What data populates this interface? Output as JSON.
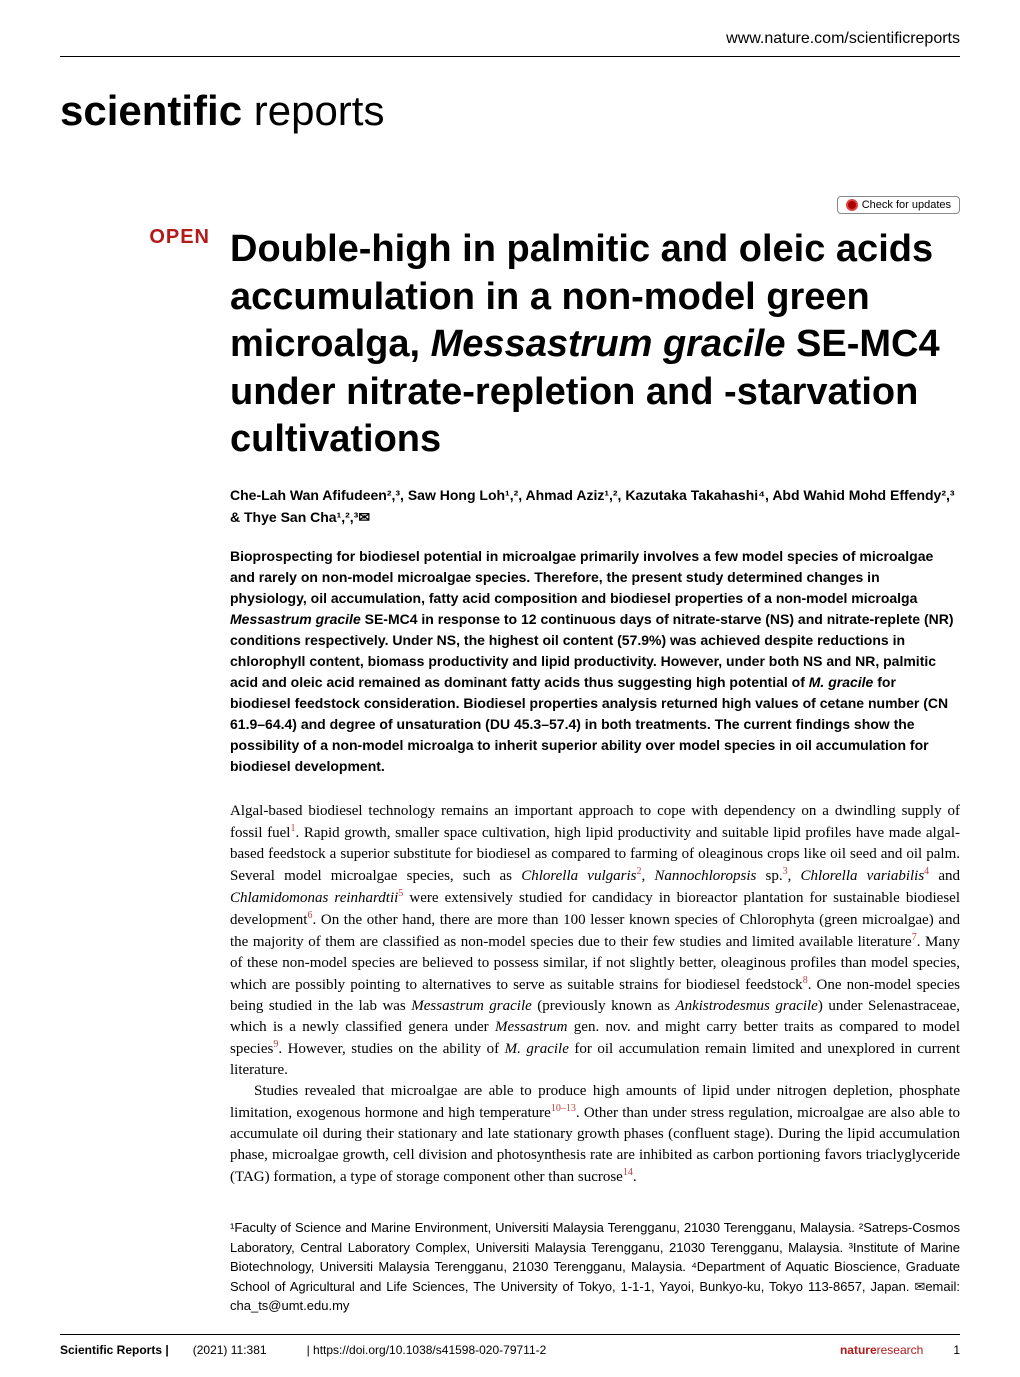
{
  "header": {
    "url": "www.nature.com/scientificreports",
    "journal_bold": "scientific",
    "journal_light": " reports",
    "check_updates": "Check for updates"
  },
  "open_label": "OPEN",
  "title": {
    "line1": "Double-high in palmitic and oleic acids accumulation in a non-model green microalga, ",
    "italic": "Messastrum gracile",
    "line2": " SE-MC4 under nitrate-repletion and -starvation cultivations"
  },
  "authors": "Che-Lah Wan Afifudeen²,³, Saw Hong Loh¹,², Ahmad Aziz¹,², Kazutaka Takahashi⁴, Abd Wahid Mohd Effendy²,³ & Thye San Cha¹,²,³✉",
  "abstract": {
    "p1": "Bioprospecting for biodiesel potential in microalgae primarily involves a few model species of microalgae and rarely on non-model microalgae species. Therefore, the present study determined changes in physiology, oil accumulation, fatty acid composition and biodiesel properties of a non-model microalga ",
    "p1_italic": "Messastrum gracile",
    "p2": " SE-MC4 in response to 12 continuous days of nitrate-starve (NS) and nitrate-replete (NR) conditions respectively. Under NS, the highest oil content (57.9%) was achieved despite reductions in chlorophyll content, biomass productivity and lipid productivity. However, under both NS and NR, palmitic acid and oleic acid remained as dominant fatty acids thus suggesting high potential of ",
    "p2_italic": "M. gracile",
    "p3": " for biodiesel feedstock consideration. Biodiesel properties analysis returned high values of cetane number (CN 61.9–64.4) and degree of unsaturation (DU 45.3–57.4) in both treatments. The current findings show the possibility of a non-model microalga to inherit superior ability over model species in oil accumulation for biodiesel development."
  },
  "body": {
    "para1_a": "Algal-based biodiesel technology remains an important approach to cope with dependency on a dwindling supply of fossil fuel",
    "para1_b": ". Rapid growth, smaller space cultivation, high lipid productivity and suitable lipid profiles have made algal-based feedstock a superior substitute for biodiesel as compared to farming of oleaginous crops like oil seed and oil palm. Several model microalgae species, such as ",
    "para1_c": ", ",
    "para1_d": " and ",
    "para1_e": " were extensively studied for candidacy in bioreactor plantation for sustainable biodiesel development",
    "para1_f": ". On the other hand, there are more than 100 lesser known species of Chlorophyta (green microalgae) and the majority of them are classified as non-model species due to their few studies and limited available literature",
    "para1_g": ". Many of these non-model species are believed to possess similar, if not slightly better, oleaginous profiles than model species, which are possibly pointing to alternatives to serve as suitable strains for biodiesel feedstock",
    "para1_h": ". One non-model species being studied in the lab was ",
    "para1_i": " (previously known as ",
    "para1_j": ") under Selenastraceae, which is a newly classified genera under ",
    "para1_k": " gen. nov. and might carry better traits as compared to model species",
    "para1_l": ". However, studies on the ability of ",
    "para1_m": " for oil accumulation remain limited and unexplored in current literature.",
    "species1": "Chlorella vulgaris",
    "species2": "Nannochloropsis",
    "species2_suffix": " sp.",
    "species3": "Chlorella variabilis",
    "species4": "Chlamidomonas reinhardtii",
    "species5": "Messastrum gracile",
    "species6": "Ankistrodesmus gracile",
    "species7": "Messastrum",
    "species8": "M. gracile",
    "para2_a": "Studies revealed that microalgae are able to produce high amounts of lipid under nitrogen depletion, phosphate limitation, exogenous hormone and high temperature",
    "para2_b": ". Other than under stress regulation, microalgae are also able to accumulate oil during their stationary and late stationary growth phases (confluent stage). During the lipid accumulation phase, microalgae growth, cell division and photosynthesis rate are inhibited as carbon portioning favors triaclyglyceride (TAG) formation, a type of storage component other than sucrose",
    "para2_c": ".",
    "refs": {
      "r1": "1",
      "r2": "2",
      "r3": "3",
      "r4": "4",
      "r5": "5",
      "r6": "6",
      "r7": "7",
      "r8": "8",
      "r9": "9",
      "r10_13": "10–13",
      "r14": "14"
    }
  },
  "affiliations": "¹Faculty of Science and Marine Environment, Universiti Malaysia Terengganu, 21030 Terengganu, Malaysia. ²Satreps-Cosmos Laboratory, Central Laboratory Complex, Universiti Malaysia Terengganu, 21030 Terengganu, Malaysia. ³Institute of Marine Biotechnology, Universiti Malaysia Terengganu, 21030 Terengganu, Malaysia. ⁴Department of Aquatic Bioscience, Graduate School of Agricultural and Life Sciences, The University of Tokyo, 1-1-1, Yayoi, Bunkyo-ku, Tokyo 113-8657, Japan. ✉email: cha_ts@umt.edu.my",
  "footer": {
    "journal": "Scientific Reports |",
    "year_vol": "(2021) 11:381",
    "doi": "| https://doi.org/10.1038/s41598-020-79711-2",
    "logo_bold": "nature",
    "logo_light": "research",
    "page": "1"
  }
}
